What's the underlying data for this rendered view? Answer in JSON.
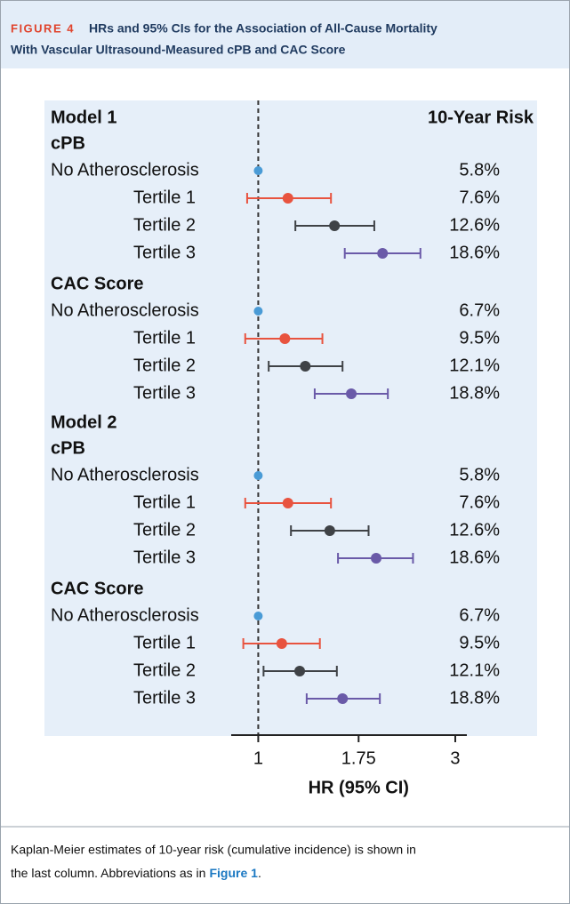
{
  "figure": {
    "label": "FIGURE 4",
    "title_lines": [
      "HRs and 95% CIs for the Association of All-Cause Mortality",
      "With Vascular Ultrasound-Measured cPB and CAC Score"
    ]
  },
  "chart_data": {
    "type": "forest",
    "x_label": "HR (95% CI)",
    "risk_header": "10-Year Risk",
    "xlim": [
      0.86,
      3.2
    ],
    "xticks": [
      1,
      1.75,
      3
    ],
    "log_x": true,
    "reference_line": 1,
    "colors": {
      "No Atherosclerosis": "#4a9bd6",
      "Tertile 1": "#e8533f",
      "Tertile 2": "#3f4246",
      "Tertile 3": "#6a5aa8"
    },
    "groups": [
      {
        "model": "Model 1",
        "subgroups": [
          {
            "name": "cPB",
            "rows": [
              {
                "label": "No Atherosclerosis",
                "hr": 1,
                "ci_low": null,
                "ci_high": null,
                "risk": "5.8%"
              },
              {
                "label": "Tertile 1",
                "hr": 1.18,
                "ci_low": 0.94,
                "ci_high": 1.5,
                "risk": "7.6%"
              },
              {
                "label": "Tertile 2",
                "hr": 1.53,
                "ci_low": 1.23,
                "ci_high": 1.91,
                "risk": "12.6%"
              },
              {
                "label": "Tertile 3",
                "hr": 2.0,
                "ci_low": 1.62,
                "ci_high": 2.47,
                "risk": "18.6%"
              }
            ]
          },
          {
            "name": "CAC Score",
            "rows": [
              {
                "label": "No Atherosclerosis",
                "hr": 1,
                "ci_low": null,
                "ci_high": null,
                "risk": "6.7%"
              },
              {
                "label": "Tertile 1",
                "hr": 1.16,
                "ci_low": 0.93,
                "ci_high": 1.43,
                "risk": "9.5%"
              },
              {
                "label": "Tertile 2",
                "hr": 1.3,
                "ci_low": 1.06,
                "ci_high": 1.6,
                "risk": "12.1%"
              },
              {
                "label": "Tertile 3",
                "hr": 1.68,
                "ci_low": 1.37,
                "ci_high": 2.06,
                "risk": "18.8%"
              }
            ]
          }
        ]
      },
      {
        "model": "Model 2",
        "subgroups": [
          {
            "name": "cPB",
            "rows": [
              {
                "label": "No Atherosclerosis",
                "hr": 1,
                "ci_low": null,
                "ci_high": null,
                "risk": "5.8%"
              },
              {
                "label": "Tertile 1",
                "hr": 1.18,
                "ci_low": 0.93,
                "ci_high": 1.5,
                "risk": "7.6%"
              },
              {
                "label": "Tertile 2",
                "hr": 1.49,
                "ci_low": 1.2,
                "ci_high": 1.85,
                "risk": "12.6%"
              },
              {
                "label": "Tertile 3",
                "hr": 1.93,
                "ci_low": 1.56,
                "ci_high": 2.37,
                "risk": "18.6%"
              }
            ]
          },
          {
            "name": "CAC Score",
            "rows": [
              {
                "label": "No Atherosclerosis",
                "hr": 1,
                "ci_low": null,
                "ci_high": null,
                "risk": "6.7%"
              },
              {
                "label": "Tertile 1",
                "hr": 1.14,
                "ci_low": 0.92,
                "ci_high": 1.41,
                "risk": "9.5%"
              },
              {
                "label": "Tertile 2",
                "hr": 1.26,
                "ci_low": 1.03,
                "ci_high": 1.55,
                "risk": "12.1%"
              },
              {
                "label": "Tertile 3",
                "hr": 1.6,
                "ci_low": 1.31,
                "ci_high": 1.97,
                "risk": "18.8%"
              }
            ]
          }
        ]
      }
    ]
  },
  "caption": {
    "line_1": "Kaplan-Meier estimates of 10-year risk (cumulative incidence) is shown in",
    "line_2": "the last column. Abbreviations as in",
    "link": "Figure 1",
    "end": "."
  }
}
